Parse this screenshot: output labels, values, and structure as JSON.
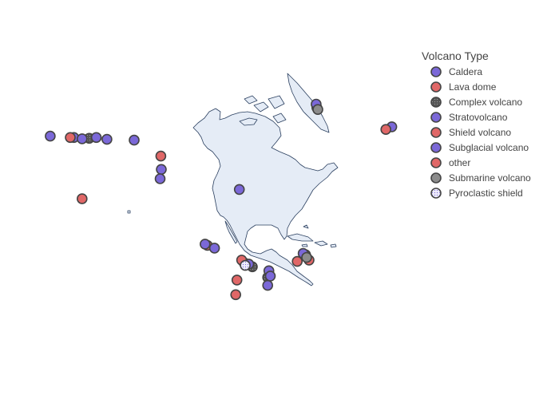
{
  "chart_data": {
    "type": "scatter",
    "subtype": "scatter_geo",
    "projection": "equirectangular",
    "scope": "north america",
    "legend": {
      "title": "Volcano Type",
      "placement": "top-right"
    },
    "colors": {
      "land": "#e5ecf6",
      "coastline": "#2a3f5f",
      "marker_border": "#444444"
    },
    "series": [
      {
        "name": "Caldera",
        "color": "#7b68d8",
        "pattern": null,
        "points": [
          [
            -148.0,
            60.3
          ],
          [
            -92.0,
            41.5
          ],
          [
            -125.0,
            49.0
          ],
          [
            -90.0,
            14.0
          ]
        ]
      },
      {
        "name": "Lava dome",
        "color": "#e06767",
        "pattern": null,
        "points": [
          [
            -125.2,
            54.0
          ],
          [
            -105.5,
            20.5
          ],
          [
            -91.0,
            15.0
          ],
          [
            -67.5,
            14.5
          ],
          [
            -93.0,
            7.5
          ]
        ]
      },
      {
        "name": "Complex volcano",
        "color": "#555555",
        "pattern": "dots",
        "points": [
          [
            -155.5,
            60.7
          ],
          [
            -64.0,
            17.0
          ],
          [
            -59.2,
            72.2
          ],
          [
            -86.5,
            12.5
          ],
          [
            -80.0,
            8.5
          ]
        ]
      },
      {
        "name": "Stratovolcano",
        "color": "#7b68d8",
        "pattern": null,
        "points": [
          [
            -172.0,
            61.5
          ],
          [
            -162.0,
            61.0
          ],
          [
            -158.5,
            60.5
          ],
          [
            -152.5,
            61.0
          ],
          [
            -136.5,
            60.0
          ],
          [
            -125.5,
            45.5
          ],
          [
            -106.5,
            21.0
          ],
          [
            -102.5,
            19.5
          ],
          [
            -88.0,
            13.5
          ],
          [
            -79.5,
            11.0
          ],
          [
            -78.9,
            9.0
          ],
          [
            -80.0,
            5.5
          ],
          [
            -65.0,
            17.5
          ],
          [
            -27.5,
            65.0
          ]
        ]
      },
      {
        "name": "Shield volcano",
        "color": "#e06767",
        "pattern": null,
        "points": [
          [
            -163.5,
            61.0
          ],
          [
            -30.0,
            64.0
          ]
        ]
      },
      {
        "name": "Subglacial volcano",
        "color": "#7b68d8",
        "pattern": null,
        "points": [
          [
            -59.5,
            73.5
          ]
        ]
      },
      {
        "name": "other",
        "color": "#e06767",
        "pattern": null,
        "points": [
          [
            -158.5,
            38.0
          ],
          [
            -62.5,
            15.0
          ],
          [
            -93.5,
            2.0
          ]
        ]
      },
      {
        "name": "Submarine volcano",
        "color": "#8c8c8c",
        "pattern": null,
        "points": [
          [
            -63.5,
            16.0
          ],
          [
            -58.8,
            71.5
          ]
        ]
      },
      {
        "name": "Pyroclastic shield",
        "color": "#d0ccf2",
        "pattern": "dots",
        "points": [
          [
            -89.5,
            13.0
          ]
        ]
      }
    ]
  }
}
